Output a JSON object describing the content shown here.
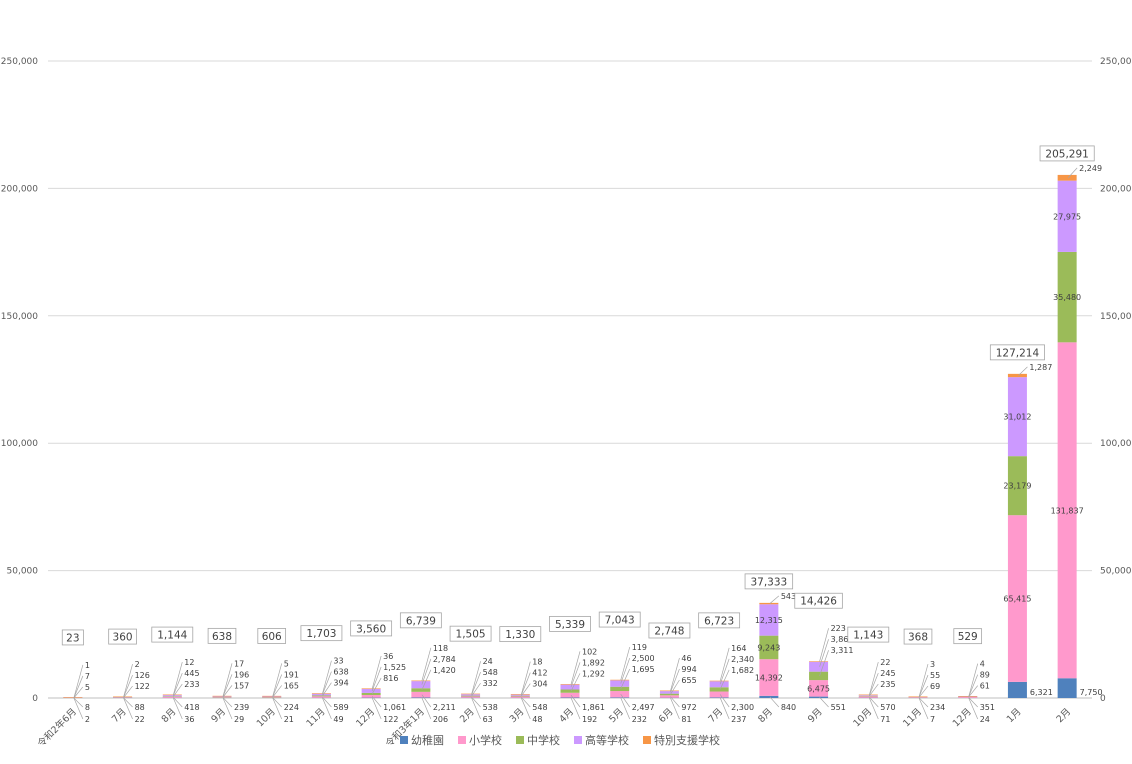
{
  "chart_data": {
    "type": "bar",
    "stacked": true,
    "categories": [
      "令和2年6月",
      "7月",
      "8月",
      "9月",
      "10月",
      "11月",
      "12月",
      "令和3年1月",
      "2月",
      "3月",
      "4月",
      "5月",
      "6月",
      "7月",
      "8月",
      "9月",
      "10月",
      "11月",
      "12月",
      "1月",
      "2月"
    ],
    "series": [
      {
        "name": "幼稚園",
        "color": "#4f81bd",
        "values": [
          2,
          22,
          36,
          29,
          21,
          49,
          122,
          206,
          63,
          48,
          192,
          232,
          81,
          237,
          840,
          551,
          71,
          7,
          24,
          6321,
          7750
        ]
      },
      {
        "name": "小学校",
        "color": "#ff99cc",
        "values": [
          8,
          88,
          418,
          239,
          224,
          589,
          1061,
          2211,
          538,
          548,
          1861,
          2497,
          972,
          2300,
          14392,
          6475,
          570,
          234,
          351,
          65415,
          131837
        ]
      },
      {
        "name": "中学校",
        "color": "#9bbb59",
        "values": [
          5,
          122,
          233,
          157,
          165,
          394,
          816,
          1420,
          332,
          304,
          1292,
          1695,
          655,
          1682,
          9243,
          3311,
          235,
          69,
          61,
          23179,
          35480
        ]
      },
      {
        "name": "高等学校",
        "color": "#cc99ff",
        "values": [
          7,
          126,
          445,
          196,
          191,
          638,
          1525,
          2784,
          548,
          412,
          1892,
          2500,
          994,
          2340,
          12315,
          3866,
          245,
          55,
          89,
          31012,
          27975
        ]
      },
      {
        "name": "特別支援学校",
        "color": "#f79646",
        "values": [
          1,
          2,
          12,
          17,
          5,
          33,
          36,
          118,
          24,
          18,
          102,
          119,
          46,
          164,
          543,
          223,
          22,
          3,
          4,
          1287,
          2249
        ]
      }
    ],
    "totals": [
      23,
      360,
      1144,
      638,
      606,
      1703,
      3560,
      6739,
      1505,
      1330,
      5339,
      7043,
      2748,
      6723,
      37333,
      14426,
      1143,
      368,
      529,
      127214,
      205291
    ],
    "yticks": [
      0,
      50000,
      100000,
      150000,
      200000,
      250000
    ],
    "ytick_labels": [
      "0",
      "50,000",
      "100,000",
      "150,000",
      "200,000",
      "250,000"
    ],
    "ylim": [
      0,
      250000
    ],
    "grid": true,
    "legend_position": "bottom"
  }
}
